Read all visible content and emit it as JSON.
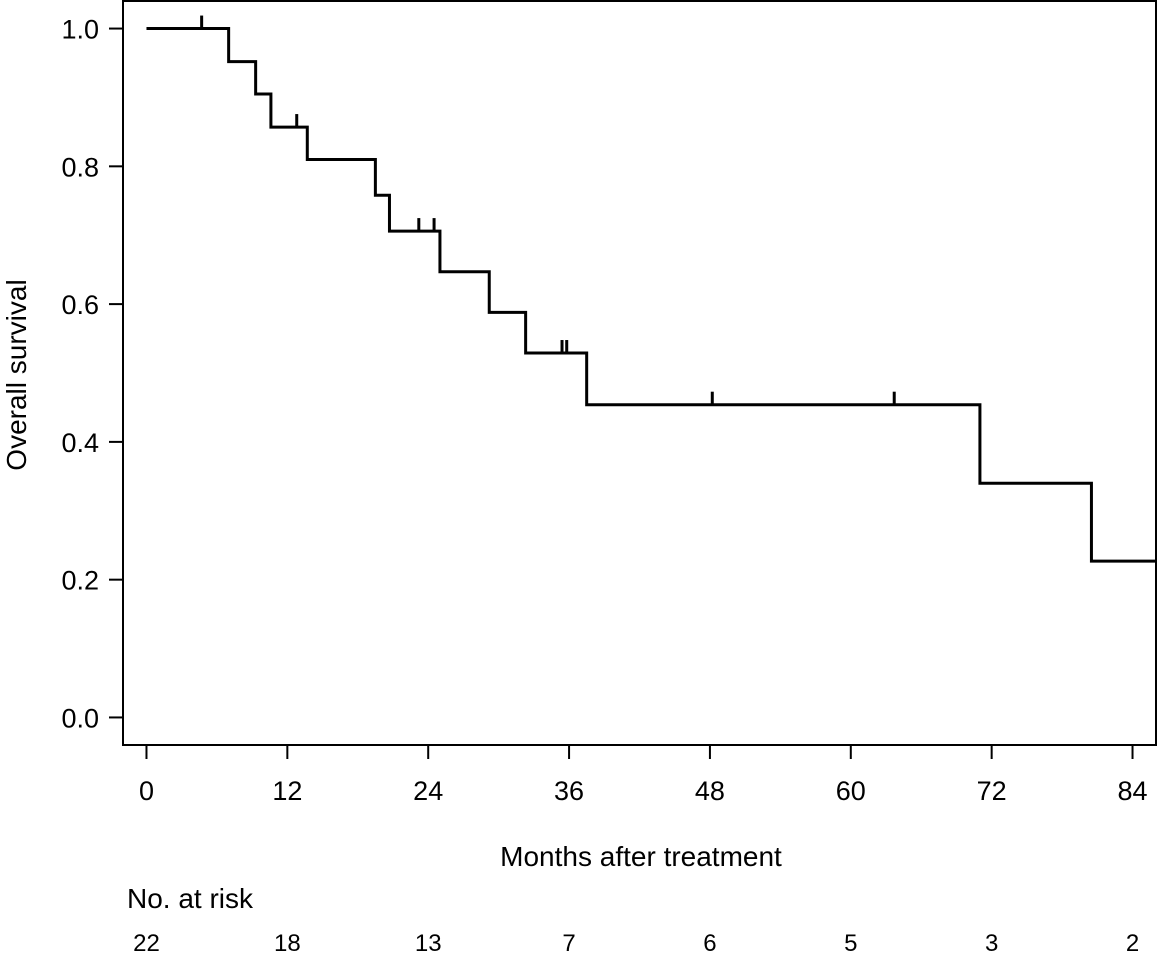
{
  "chart_data": {
    "type": "line",
    "title": "",
    "xlabel": "Months after treatment",
    "ylabel": "Overall survival",
    "xlim": [
      -2,
      86
    ],
    "ylim": [
      -0.04,
      1.04
    ],
    "x_ticks": [
      0,
      12,
      24,
      36,
      48,
      60,
      72,
      84
    ],
    "x_tick_labels": [
      "0",
      "12",
      "24",
      "36",
      "48",
      "60",
      "72",
      "84"
    ],
    "y_ticks": [
      0.0,
      0.2,
      0.4,
      0.6,
      0.8,
      1.0
    ],
    "y_tick_labels": [
      "0.0",
      "0.2",
      "0.4",
      "0.6",
      "0.8",
      "1.0"
    ],
    "grid": false,
    "line_color": "#000000",
    "series": [
      {
        "style": "step",
        "x": [
          0,
          7,
          9.3,
          10.6,
          13.7,
          19.5,
          20.7,
          25,
          29.2,
          32.3,
          37.5,
          71,
          80.5,
          86
        ],
        "y": [
          1.0,
          0.952,
          0.905,
          0.857,
          0.81,
          0.758,
          0.706,
          0.647,
          0.588,
          0.529,
          0.454,
          0.34,
          0.227,
          0.227
        ]
      }
    ],
    "censor_marks": [
      {
        "x": 4.7,
        "y": 1.0
      },
      {
        "x": 12.8,
        "y": 0.857
      },
      {
        "x": 23.2,
        "y": 0.706
      },
      {
        "x": 24.5,
        "y": 0.706
      },
      {
        "x": 35.4,
        "y": 0.529
      },
      {
        "x": 35.8,
        "y": 0.529
      },
      {
        "x": 48.2,
        "y": 0.454
      },
      {
        "x": 63.7,
        "y": 0.454
      }
    ],
    "risk_table": {
      "label": "No. at risk",
      "times": [
        0,
        12,
        24,
        36,
        48,
        60,
        72,
        84
      ],
      "counts": [
        "22",
        "18",
        "13",
        "7",
        "6",
        "5",
        "3",
        "2"
      ]
    }
  }
}
